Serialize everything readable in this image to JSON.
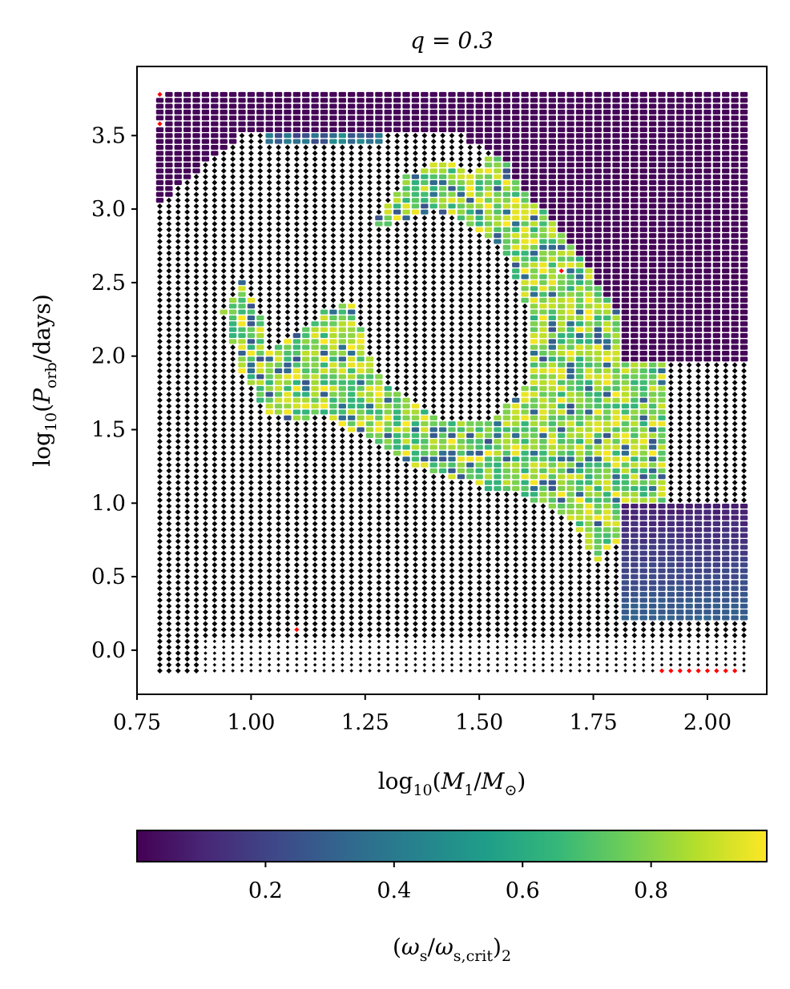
{
  "chart_data": {
    "type": "scatter",
    "title": "q = 0.3",
    "xlabel": "log10(M1/M⊙)",
    "ylabel": "log10(Porb/days)",
    "xlim": [
      0.75,
      2.13
    ],
    "ylim": [
      -0.3,
      3.97
    ],
    "x_ticks": [
      "0.75",
      "1.00",
      "1.25",
      "1.50",
      "1.75",
      "2.00"
    ],
    "x_tick_values": [
      0.75,
      1.0,
      1.25,
      1.5,
      1.75,
      2.0
    ],
    "y_ticks": [
      "0.0",
      "0.5",
      "1.0",
      "1.5",
      "2.0",
      "2.5",
      "3.0",
      "3.5"
    ],
    "y_tick_values": [
      0.0,
      0.5,
      1.0,
      1.5,
      2.0,
      2.5,
      3.0,
      3.5
    ],
    "grid": false,
    "grid_x": {
      "start": 0.8,
      "step": 0.02,
      "count": 65
    },
    "grid_y": {
      "start": -0.14,
      "step": 0.04,
      "count": 99
    },
    "marker_classes": {
      "colored": "value of (ωs/ωs,crit)2, viridis colormap",
      "black": "no colored value",
      "red": "red marker"
    },
    "colorbar": {
      "label": "(ωs/ωs,crit)2",
      "colormap": "viridis",
      "range": [
        0.0,
        0.98
      ],
      "ticks": [
        "0.2",
        "0.4",
        "0.6",
        "0.8"
      ],
      "tick_values": [
        0.2,
        0.4,
        0.6,
        0.8
      ]
    },
    "colors": {
      "viridis": [
        "#440154",
        "#482878",
        "#3e4989",
        "#31688e",
        "#26828e",
        "#1f9e89",
        "#35b779",
        "#6ece58",
        "#b5de2b",
        "#fde725"
      ],
      "black": "#000000",
      "red": "#ff0000"
    }
  }
}
